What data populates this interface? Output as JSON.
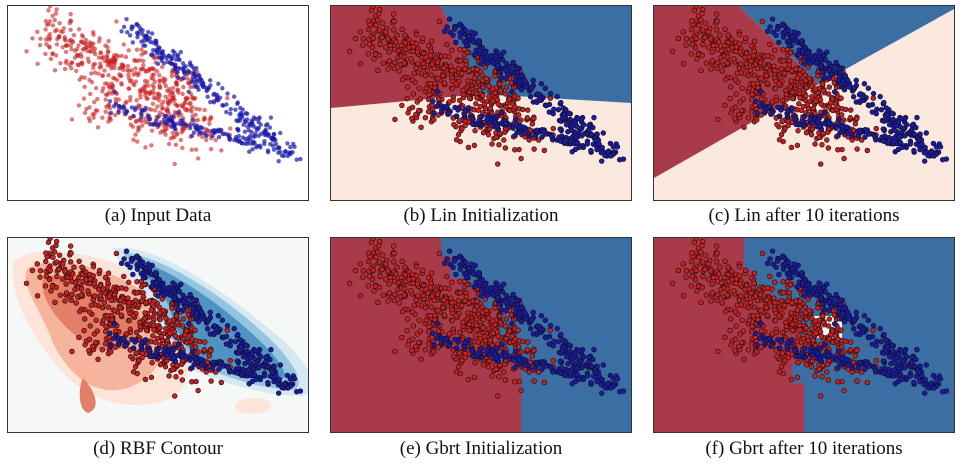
{
  "panels": [
    {
      "id": "a",
      "caption": "(a)  Input Data",
      "kind": "input"
    },
    {
      "id": "b",
      "caption": "(b)  Lin Initialization",
      "kind": "lin_init"
    },
    {
      "id": "c",
      "caption": "(c)  Lin after 10 iterations",
      "kind": "lin_iter"
    },
    {
      "id": "d",
      "caption": "(d)  RBF Contour",
      "kind": "rbf"
    },
    {
      "id": "e",
      "caption": "(e)  Gbrt Initialization",
      "kind": "gbrt_init"
    },
    {
      "id": "f",
      "caption": "(f)  Gbrt after 10 iterations",
      "kind": "gbrt_iter"
    }
  ],
  "colors": {
    "red_region": "#a83a4a",
    "blue_region": "#3b6fa4",
    "light_region": "#fbe9e0",
    "red_point": "#cc1f1f",
    "blue_point": "#1a1aa8",
    "point_edge": "#111111",
    "rbf_red": [
      "#fde4d8",
      "#f6b49c",
      "#e37f67"
    ],
    "rbf_blue": [
      "#d6e8f2",
      "#94c4df",
      "#4f93c3"
    ],
    "rbf_bg": "#f6f8f7"
  },
  "chart_data": [
    {
      "type": "scatter",
      "panel": "a",
      "series": [
        {
          "class": "red"
        },
        {
          "class": "blue"
        }
      ]
    },
    {
      "type": "scatter",
      "panel": "b",
      "series": [
        {
          "class": "red"
        },
        {
          "class": "blue"
        }
      ]
    },
    {
      "type": "scatter",
      "panel": "c",
      "series": [
        {
          "class": "red"
        },
        {
          "class": "blue"
        }
      ]
    },
    {
      "type": "heatmap",
      "panel": "d",
      "series": [
        {
          "class": "red"
        },
        {
          "class": "blue"
        }
      ]
    },
    {
      "type": "scatter",
      "panel": "e",
      "series": [
        {
          "class": "red"
        },
        {
          "class": "blue"
        }
      ]
    },
    {
      "type": "scatter",
      "panel": "f",
      "series": [
        {
          "class": "red"
        },
        {
          "class": "blue"
        }
      ]
    }
  ]
}
